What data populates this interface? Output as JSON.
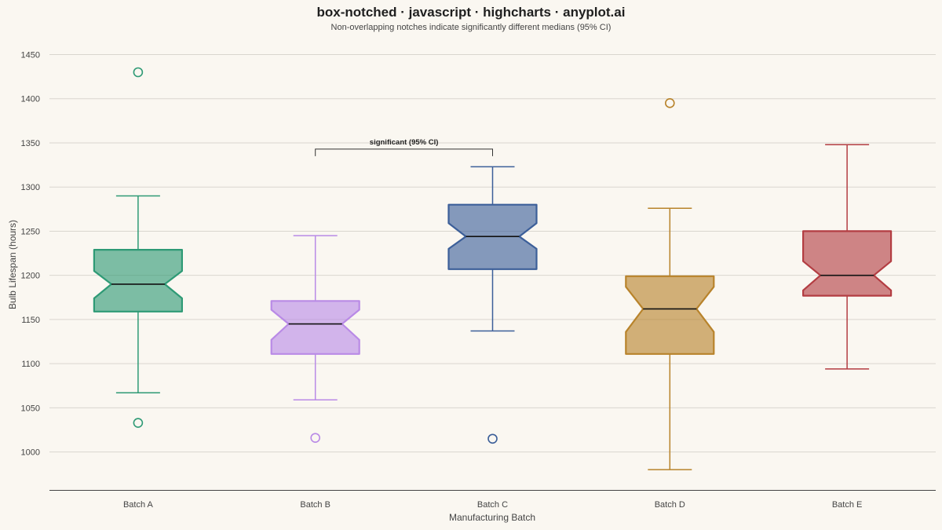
{
  "chart_data": {
    "type": "box",
    "title": "box-notched · javascript · highcharts · anyplot.ai",
    "subtitle": "Non-overlapping notches indicate significantly different medians (95% CI)",
    "xlabel": "Manufacturing Batch",
    "ylabel": "Bulb Lifespan (hours)",
    "ylim": [
      957,
      1470
    ],
    "yticks": [
      1000,
      1050,
      1100,
      1150,
      1200,
      1250,
      1300,
      1350,
      1400,
      1450
    ],
    "grid": true,
    "categories": [
      "Batch A",
      "Batch B",
      "Batch C",
      "Batch D",
      "Batch E"
    ],
    "series": [
      {
        "category": "Batch A",
        "color": "#2e9a75",
        "low": 1067,
        "q1": 1159,
        "median": 1190,
        "q3": 1229,
        "high": 1290,
        "notch_low": 1174,
        "notch_high": 1205,
        "outliers": [
          1430,
          1033
        ]
      },
      {
        "category": "Batch B",
        "color": "#b98ae6",
        "low": 1059,
        "q1": 1111,
        "median": 1145,
        "q3": 1171,
        "high": 1245,
        "notch_low": 1127,
        "notch_high": 1161,
        "outliers": [
          1016
        ]
      },
      {
        "category": "Batch C",
        "color": "#3c5f99",
        "low": 1137,
        "q1": 1207,
        "median": 1244,
        "q3": 1280,
        "high": 1323,
        "notch_low": 1230,
        "notch_high": 1259,
        "outliers": [
          1015
        ]
      },
      {
        "category": "Batch D",
        "color": "#b8832b",
        "low": 980,
        "q1": 1111,
        "median": 1162,
        "q3": 1199,
        "high": 1276,
        "notch_low": 1136,
        "notch_high": 1187,
        "outliers": [
          1395
        ]
      },
      {
        "category": "Batch E",
        "color": "#b33d42",
        "low": 1094,
        "q1": 1177,
        "median": 1200,
        "q3": 1250,
        "high": 1348,
        "notch_low": 1183,
        "notch_high": 1216,
        "outliers": []
      }
    ],
    "annotations": [
      {
        "from": "Batch B",
        "to": "Batch C",
        "label": "significant (95% CI)",
        "y": 1343
      }
    ]
  }
}
